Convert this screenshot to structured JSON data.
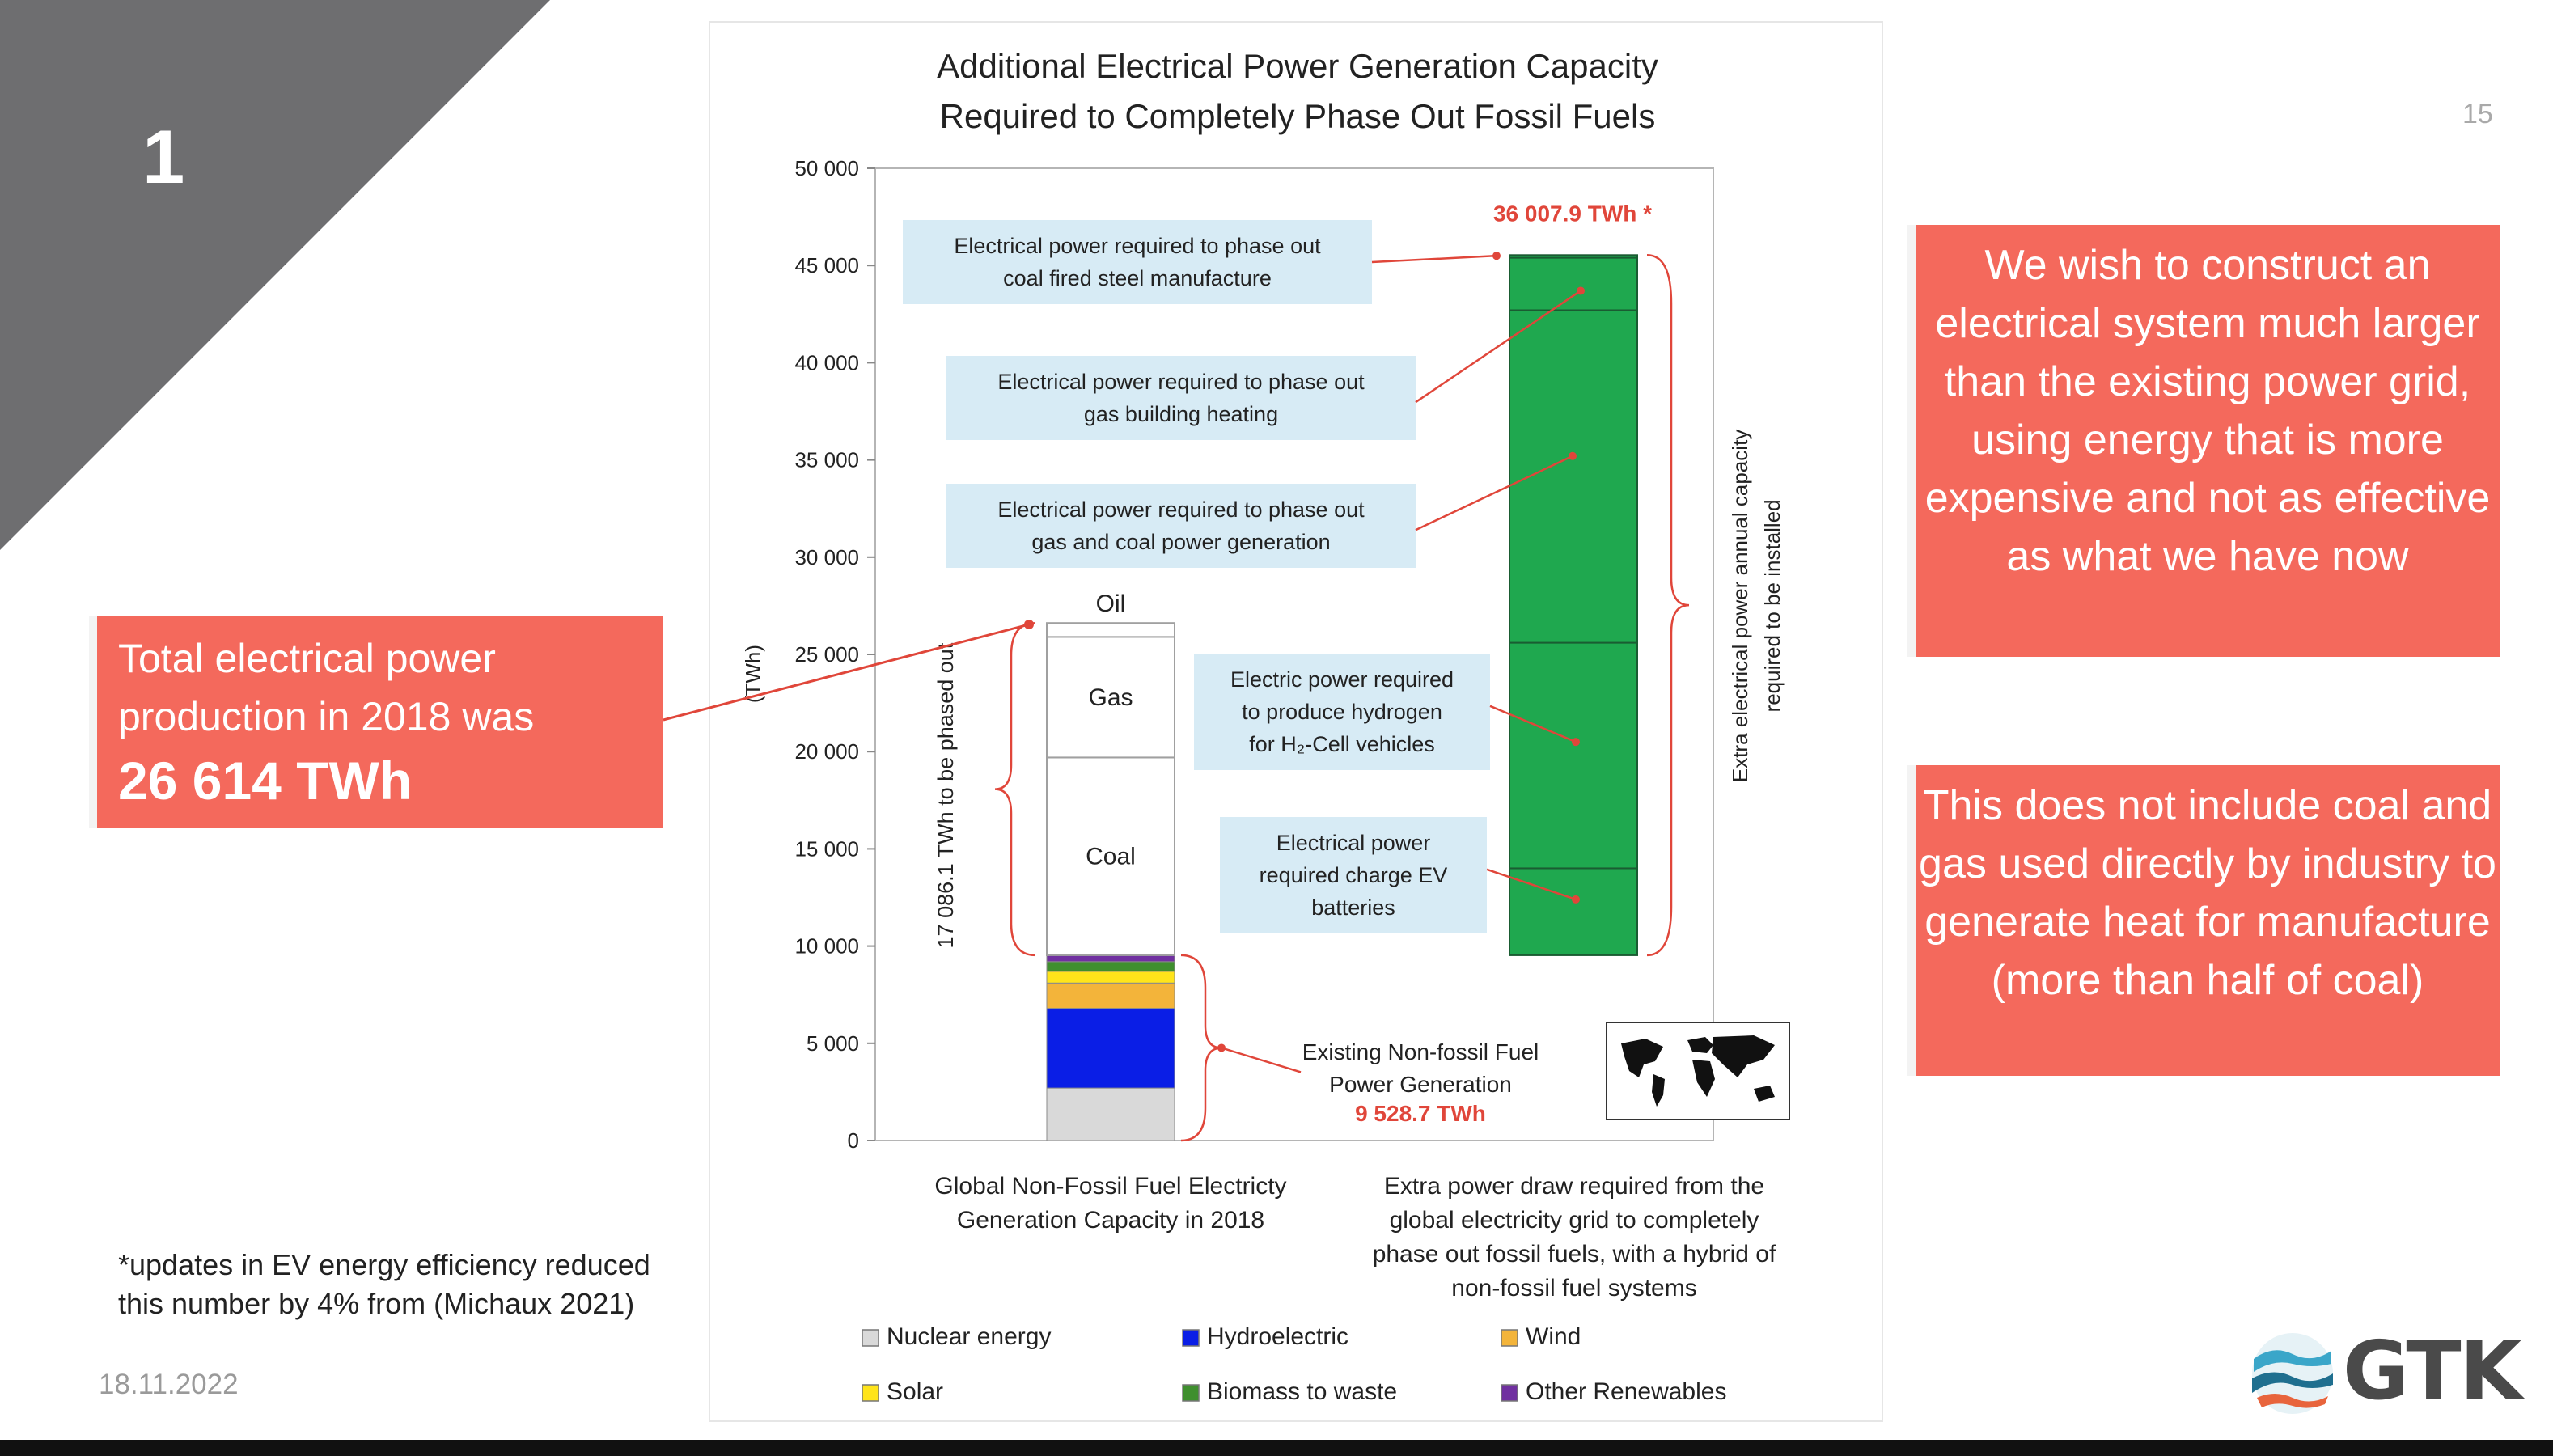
{
  "slide": {
    "number": "1",
    "page_number": "15",
    "date": "18.11.2022",
    "footnote": "*updates in EV energy efficiency reduced this number by 4% from (Michaux 2021)",
    "logo_text": "GTK"
  },
  "callouts": {
    "left_line1": "Total electrical power",
    "left_line2": "production in 2018 was",
    "left_value": "26 614 TWh",
    "right_top": "We wish to construct an electrical system much larger than the existing power grid, using energy that is more expensive and not as effective as what we have now",
    "right_bottom": "This does not include coal and gas used directly by industry to generate heat for manufacture (more than half of coal)"
  },
  "colors": {
    "callout": "#f4695c",
    "corner": "#6e6e70",
    "nuclear": "#d9d9d9",
    "hydro": "#0a1ee6",
    "wind": "#f3b43a",
    "solar": "#ffe41a",
    "biomass": "#3f8f2e",
    "other_renewables": "#7030a0",
    "extra": "#1fa84f",
    "annotation": "#e0463a",
    "label_box": "#d7ebf5"
  },
  "chart_data": {
    "type": "bar",
    "title": "Additional Electrical Power Generation Capacity Required to Completely Phase Out Fossil Fuels",
    "ylabel": "(TWh)",
    "ylim": [
      0,
      50000
    ],
    "yticks": [
      0,
      5000,
      10000,
      15000,
      20000,
      25000,
      30000,
      35000,
      40000,
      45000,
      50000
    ],
    "ytick_labels": [
      "0",
      "5 000",
      "10 000",
      "15 000",
      "20 000",
      "25 000",
      "30 000",
      "35 000",
      "40 000",
      "45 000",
      "50 000"
    ],
    "categories": [
      "Global Non-Fossil Fuel Electricty Generation Capacity in 2018",
      "Extra power draw required from the global electricity grid to completely phase out fossil fuels, with a hybrid of non-fossil fuel systems"
    ],
    "category_label_lines": [
      [
        "Global Non-Fossil Fuel Electricty",
        "Generation Capacity in 2018"
      ],
      [
        "Extra power draw required from the",
        "global electricity grid to completely",
        "phase out fossil fuels, with a hybrid of",
        "non-fossil fuel systems"
      ]
    ],
    "stack_2018": [
      {
        "name": "Nuclear energy",
        "start": 0,
        "end": 2700,
        "color_key": "nuclear"
      },
      {
        "name": "Hydroelectric",
        "start": 2700,
        "end": 6800,
        "color_key": "hydro"
      },
      {
        "name": "Wind",
        "start": 6800,
        "end": 8100,
        "color_key": "wind"
      },
      {
        "name": "Solar",
        "start": 8100,
        "end": 8700,
        "color_key": "solar"
      },
      {
        "name": "Biomass to waste",
        "start": 8700,
        "end": 9200,
        "color_key": "biomass"
      },
      {
        "name": "Other Renewables",
        "start": 9200,
        "end": 9528.7,
        "color_key": "other_renewables"
      },
      {
        "name": "Coal",
        "start": 9528.7,
        "end": 19700,
        "color_key": "fossil",
        "label": "Coal"
      },
      {
        "name": "Gas",
        "start": 19700,
        "end": 25900,
        "color_key": "fossil",
        "label": "Gas"
      },
      {
        "name": "Oil",
        "start": 25900,
        "end": 26614,
        "color_key": "fossil",
        "label": "Oil"
      }
    ],
    "stack_extra": [
      {
        "name": "Electrical power required charge EV batteries",
        "start": 9528.7,
        "end": 14000
      },
      {
        "name": "Electric power required to produce hydrogen for H2-Cell vehicles",
        "start": 14000,
        "end": 25600
      },
      {
        "name": "Electrical power required to phase out gas and coal power generation",
        "start": 25600,
        "end": 42700
      },
      {
        "name": "Electrical power required to phase out gas building heating",
        "start": 42700,
        "end": 45400
      },
      {
        "name": "Electrical power required to phase out coal fired steel manufacture",
        "start": 45400,
        "end": 45536.6
      }
    ],
    "annotations": {
      "total_extra": "36 007.9 TWh *",
      "existing_label_1": "Existing Non-fossil Fuel",
      "existing_label_2": "Power Generation",
      "existing_value": "9 528.7 TWh",
      "fossil_brace": "17 086.1 TWh to be phased out",
      "extra_brace_1": "Extra electrical power annual capacity",
      "extra_brace_2": "required to be installed"
    },
    "boxes": [
      {
        "lines": [
          "Electrical power required to phase out",
          "coal fired steel manufacture"
        ]
      },
      {
        "lines": [
          "Electrical power required to phase out",
          "gas building heating"
        ]
      },
      {
        "lines": [
          "Electrical power required to phase out",
          "gas and coal power generation"
        ]
      },
      {
        "lines": [
          "Electric power required",
          "to produce hydrogen",
          "for H₂-Cell vehicles"
        ]
      },
      {
        "lines": [
          "Electrical power",
          "required charge EV",
          "batteries"
        ]
      }
    ],
    "legend": [
      {
        "label": "Nuclear energy",
        "color_key": "nuclear"
      },
      {
        "label": "Hydroelectric",
        "color_key": "hydro"
      },
      {
        "label": "Wind",
        "color_key": "wind"
      },
      {
        "label": "Solar",
        "color_key": "solar"
      },
      {
        "label": "Biomass to waste",
        "color_key": "biomass"
      },
      {
        "label": "Other Renewables",
        "color_key": "other_renewables"
      }
    ],
    "grid": false,
    "legend_position": "bottom"
  }
}
